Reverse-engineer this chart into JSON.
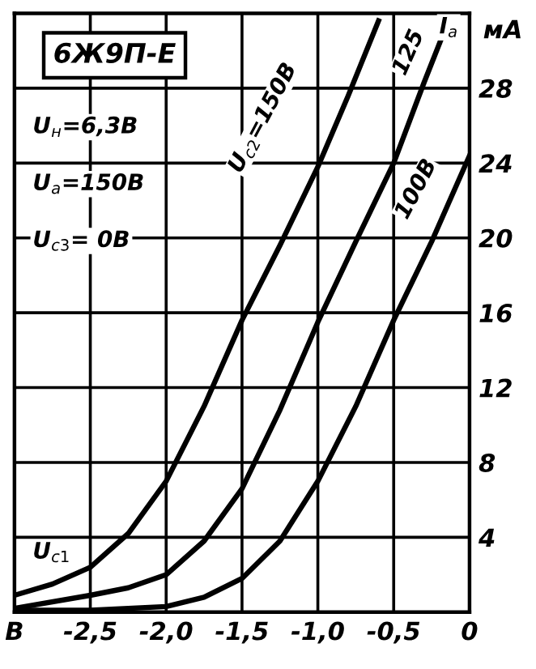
{
  "chart_data": {
    "type": "line",
    "title": "6Ж9П-Е",
    "xlabel": "U$_{с1}$",
    "ylabel": "мА",
    "annotations": [
      "I$_{а}$",
      "U$_{н}$=6,3В",
      "U$_{а}$=150В",
      "U$_{с3}$= 0В"
    ],
    "series": [
      {
        "name": "U$_{с2}$=150В",
        "color": "#000000",
        "x": [
          -3.0,
          -2.75,
          -2.5,
          -2.25,
          -2.0,
          -1.75,
          -1.5,
          -1.25,
          -1.0,
          -0.8,
          -0.6
        ],
        "values": [
          0.9,
          1.5,
          2.4,
          4.2,
          7.0,
          11.0,
          15.6,
          19.6,
          23.8,
          27.6,
          31.6
        ]
      },
      {
        "name": "125",
        "color": "#000000",
        "x": [
          -3.0,
          -2.5,
          -2.25,
          -2.0,
          -1.75,
          -1.5,
          -1.25,
          -1.0,
          -0.75,
          -0.5,
          -0.3,
          -0.12
        ],
        "values": [
          0.2,
          0.9,
          1.3,
          2.0,
          3.8,
          6.6,
          10.8,
          15.5,
          19.8,
          24.0,
          28.3,
          32
        ]
      },
      {
        "name": "100В",
        "color": "#000000",
        "x": [
          -3.0,
          -2.5,
          -2.0,
          -1.75,
          -1.5,
          -1.25,
          -1.0,
          -0.75,
          -0.5,
          -0.25,
          0.0
        ],
        "values": [
          0.1,
          0.1,
          0.3,
          0.8,
          1.8,
          3.8,
          7.0,
          11.0,
          15.6,
          19.8,
          24.4
        ]
      }
    ],
    "xlim": [
      -3.0,
      0.0
    ],
    "ylim": [
      0,
      32
    ],
    "xticks": [
      {
        "value": -3.0,
        "label": "В"
      },
      {
        "value": -2.5,
        "label": "-2,5"
      },
      {
        "value": -2.0,
        "label": "-2,0"
      },
      {
        "value": -1.5,
        "label": "-1,5"
      },
      {
        "value": -1.0,
        "label": "-1,0"
      },
      {
        "value": -0.5,
        "label": "-0,5"
      },
      0
    ],
    "yticks": [
      {
        "value": 0,
        "label": null
      },
      4,
      8,
      12,
      16,
      20,
      24,
      28
    ],
    "grid": true,
    "marker": "none",
    "line_style": "solid",
    "legend": false
  }
}
